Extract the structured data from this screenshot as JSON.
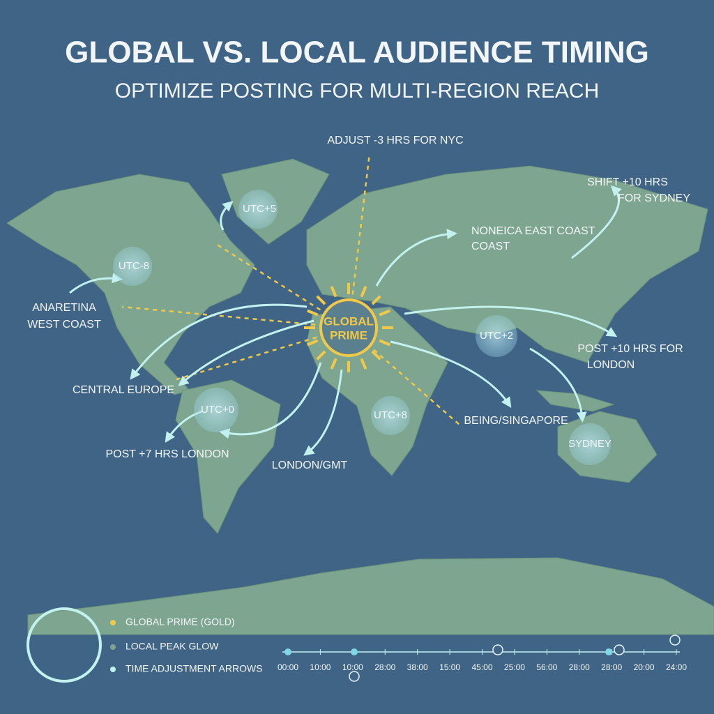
{
  "header": {
    "title": "GLOBAL VS. LOCAL AUDIENCE TIMING",
    "subtitle": "OPTIMIZE POSTING FOR MULTI-REGION REACH"
  },
  "center": [
    "GLOBAL",
    "PRIME"
  ],
  "bubbles": [
    "UTC+5",
    "UTC-8",
    "UTC+0",
    "UTC+8",
    "UTC+2",
    "SYDNEY"
  ],
  "labels": [
    [
      "ADJUST -3 HRS FOR NYC"
    ],
    [
      "SHIFT +10 HRS",
      "FOR SYDNEY"
    ],
    [
      "NONEICA EAST COAST",
      "COAST"
    ],
    [
      "ANARETINA",
      "WEST COAST"
    ],
    [
      "CENTRAL EUROPE"
    ],
    [
      "POST +7 HRS LONDON"
    ],
    [
      "LONDON/GMT"
    ],
    [
      "BEING/SINGAPORE"
    ],
    [
      "POST +10 HRS FOR",
      "LONDON"
    ]
  ],
  "legend": [
    "GLOBAL PRIME (GOLD)",
    "LOCAL PEAK GLOW",
    "TIME ADJUSTMENT ARROWS"
  ],
  "timeline": [
    "00:00",
    "10:00",
    "10:00",
    "28:00",
    "38:00",
    "15:00",
    "45:00",
    "25:00",
    "56:00",
    "28:00",
    "28:00",
    "20:00",
    "24:00"
  ]
}
